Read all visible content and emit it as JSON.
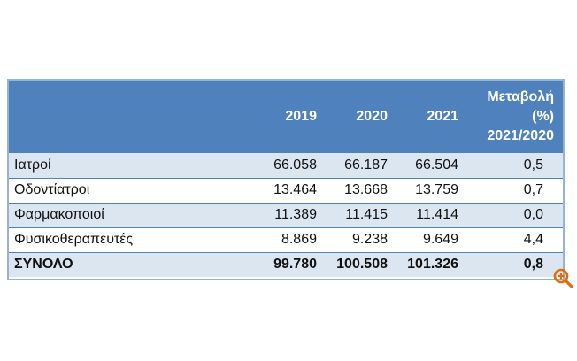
{
  "table": {
    "header": {
      "col_name": "",
      "col_2019": "2019",
      "col_2020": "2020",
      "col_2021": "2021",
      "col_change_line1": "Μεταβολή",
      "col_change_line2": "(%)",
      "col_change_line3": "2021/2020"
    },
    "rows": [
      {
        "label": "Ιατροί",
        "y2019": "66.058",
        "y2020": "66.187",
        "y2021": "66.504",
        "change": "0,5"
      },
      {
        "label": "Οδοντίατροι",
        "y2019": "13.464",
        "y2020": "13.668",
        "y2021": "13.759",
        "change": "0,7"
      },
      {
        "label": "Φαρμακοποιοί",
        "y2019": "11.389",
        "y2020": "11.415",
        "y2021": "11.414",
        "change": "0,0"
      },
      {
        "label": "Φυσικοθεραπευτές",
        "y2019": "8.869",
        "y2020": "9.238",
        "y2021": "9.649",
        "change": "4,4"
      }
    ],
    "total": {
      "label": "ΣΥΝΟΛΟ",
      "y2019": "99.780",
      "y2020": "100.508",
      "y2021": "101.326",
      "change": "0,8"
    }
  },
  "colors": {
    "header_bg": "#4f81bd",
    "row_shade": "#dce6f1",
    "zoom_icon": "#e36c0a"
  },
  "icons": {
    "zoom": "zoom-in-icon"
  }
}
